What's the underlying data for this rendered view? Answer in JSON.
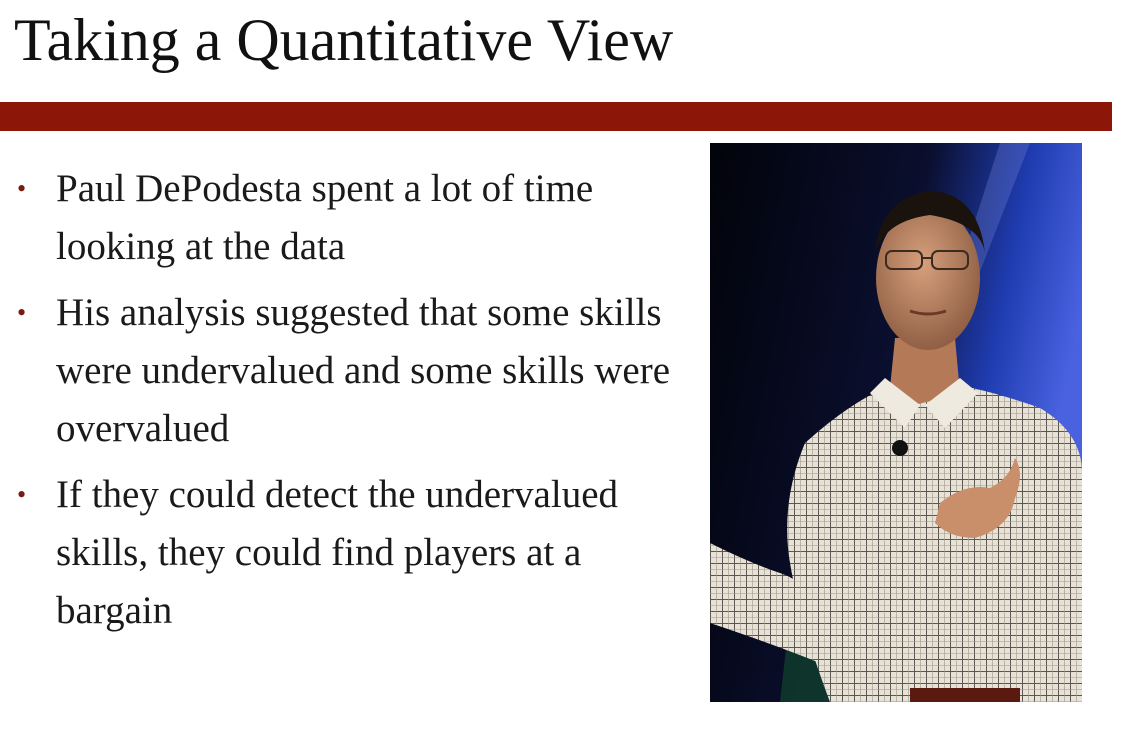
{
  "slide": {
    "title": "Taking a Quantitative View",
    "bullets": [
      "Paul DePodesta spent a lot of time looking at the data",
      "His analysis suggested that some skills were undervalued and some skills were overvalued",
      "If  they could detect the undervalued skills, they could find players at a bargain"
    ],
    "bullet_glyph": "•"
  },
  "colors": {
    "accent_bar": "#8c1708",
    "bullet": "#7a1a10",
    "text": "#1a1a1a"
  }
}
